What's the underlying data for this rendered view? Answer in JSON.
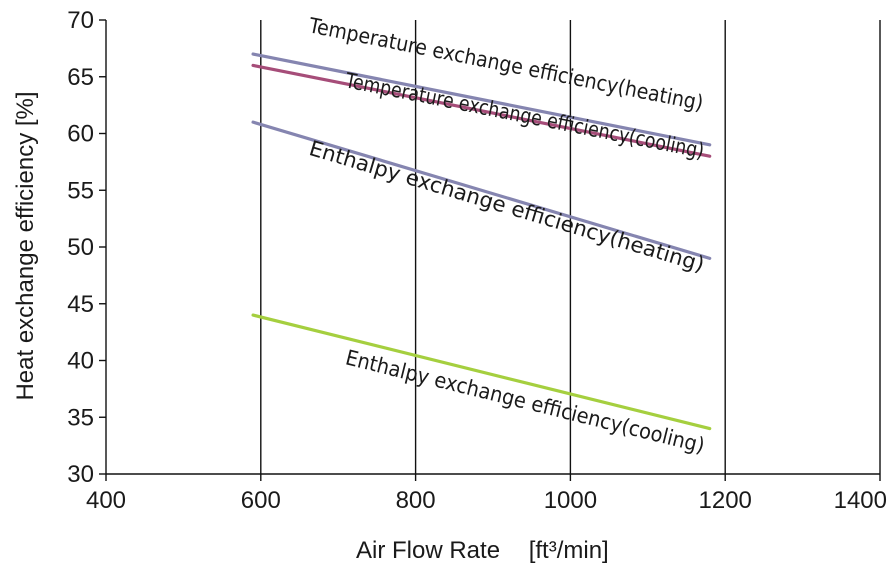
{
  "chart_data": {
    "type": "line",
    "title": "",
    "xlabel": "Air Flow Rate",
    "xunit": "[ft³/min]",
    "ylabel": "Heat exchange efficiency [%]",
    "xlim": [
      400,
      1400
    ],
    "ylim": [
      30,
      70
    ],
    "xticks": [
      400,
      600,
      800,
      1000,
      1200,
      1400
    ],
    "yticks": [
      30,
      35,
      40,
      45,
      50,
      55,
      60,
      65,
      70
    ],
    "grid": "vertical",
    "legend": "none",
    "series": [
      {
        "name": "Temperature exchange efficiency(cooling)",
        "color": "#8585b0",
        "points": [
          [
            590,
            67
          ],
          [
            1180,
            59
          ]
        ]
      },
      {
        "name": "Temperature exchange efficiency(heating)",
        "color": "#a64d79",
        "points": [
          [
            590,
            66
          ],
          [
            1180,
            58
          ]
        ]
      },
      {
        "name": "Enthalpy exchange efficiency(heating)",
        "color": "#8585b0",
        "points": [
          [
            590,
            61
          ],
          [
            1180,
            49
          ]
        ]
      },
      {
        "name": "Enthalpy exchange efficiency(cooling)",
        "color": "#a5cf3f",
        "points": [
          [
            590,
            44
          ],
          [
            1180,
            34
          ]
        ]
      }
    ]
  }
}
